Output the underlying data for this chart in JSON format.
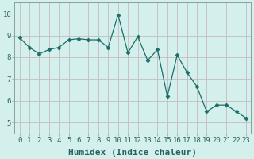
{
  "x": [
    0,
    1,
    2,
    3,
    4,
    5,
    6,
    7,
    8,
    9,
    10,
    11,
    12,
    13,
    14,
    15,
    16,
    17,
    18,
    19,
    20,
    21,
    22,
    23
  ],
  "y": [
    8.9,
    8.45,
    8.15,
    8.35,
    8.45,
    8.8,
    8.85,
    8.8,
    8.8,
    8.45,
    9.95,
    8.2,
    8.95,
    7.85,
    8.35,
    6.2,
    8.1,
    7.3,
    6.65,
    5.5,
    5.8,
    5.8,
    5.5,
    5.2
  ],
  "line_color": "#1a6e6a",
  "marker": "D",
  "marker_size": 2.5,
  "bg_color": "#d4f0ec",
  "grid_color": "#c8b8c0",
  "plot_bg_color": "#d4f0ec",
  "xlabel": "Humidex (Indice chaleur)",
  "xlim": [
    -0.5,
    23.5
  ],
  "ylim": [
    4.5,
    10.5
  ],
  "yticks": [
    5,
    6,
    7,
    8,
    9,
    10
  ],
  "xticks": [
    0,
    1,
    2,
    3,
    4,
    5,
    6,
    7,
    8,
    9,
    10,
    11,
    12,
    13,
    14,
    15,
    16,
    17,
    18,
    19,
    20,
    21,
    22,
    23
  ],
  "tick_fontsize": 6.5,
  "xlabel_fontsize": 8,
  "tick_color": "#2a6060",
  "spine_color": "#8aa0a0"
}
